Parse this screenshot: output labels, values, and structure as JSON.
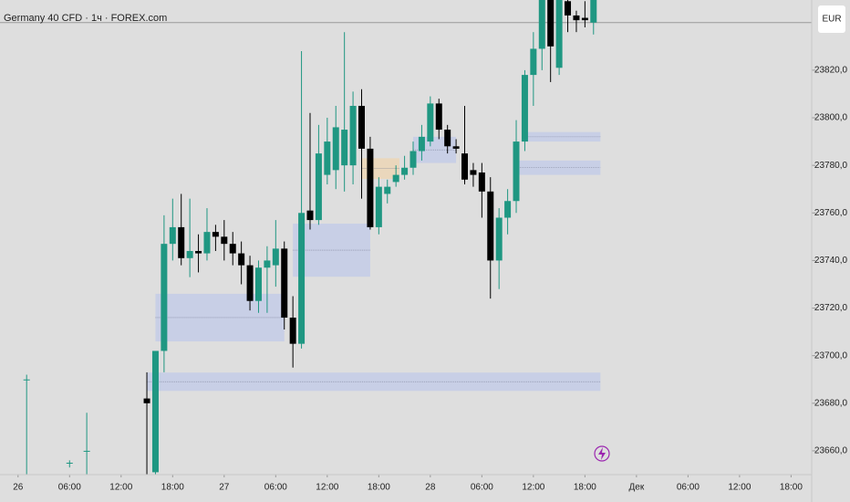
{
  "chart_data": {
    "type": "candlestick",
    "title": "Germany 40 CFD · 1ч · FOREX.com",
    "currency": "EUR",
    "up_color": "#1f9782",
    "down_color": "#000000",
    "background": "#dedede",
    "price_line": 23840,
    "x": [
      1,
      6,
      8,
      15,
      16,
      17,
      18,
      19,
      20,
      21,
      22,
      23,
      24,
      25,
      26,
      27,
      28,
      29,
      30,
      31,
      32,
      33,
      34,
      35,
      36,
      37,
      38,
      39,
      40,
      41,
      42,
      43,
      44,
      45,
      46,
      47,
      48,
      49,
      50,
      51,
      52,
      53,
      54,
      55,
      56,
      57,
      58,
      59,
      60,
      61,
      62,
      63,
      64,
      65,
      66,
      67
    ],
    "open": [
      23690,
      23655,
      23660,
      23682,
      23651,
      23702,
      23747,
      23754,
      23741,
      23744,
      23743,
      23752,
      23750,
      23747,
      23743,
      23738,
      23723,
      23737,
      23738,
      23745,
      23716,
      23705,
      23761,
      23757,
      23776,
      23778,
      23780,
      23780,
      23805,
      23787,
      23754,
      23768,
      23773,
      23776,
      23779,
      23786,
      23790,
      23806,
      23795,
      23788,
      23785,
      23778,
      23777,
      23769,
      23740,
      23758,
      23765,
      23790,
      23818,
      23829,
      23850,
      23821,
      23849,
      23843,
      23842,
      23840
    ],
    "high": [
      23692,
      23656,
      23676,
      23693,
      23702,
      23759,
      23766,
      23768,
      23766,
      23751,
      23762,
      23755,
      23757,
      23752,
      23748,
      23742,
      23740,
      23746,
      23757,
      23748,
      23725,
      23828,
      23802,
      23797,
      23800,
      23805,
      23836,
      23811,
      23812,
      23792,
      23775,
      23774,
      23780,
      23784,
      23790,
      23797,
      23809,
      23808,
      23797,
      23791,
      23805,
      23781,
      23781,
      23775,
      23762,
      23770,
      23799,
      23820,
      23836,
      23850,
      23850,
      23850,
      23850,
      23845,
      23849,
      23850
    ],
    "low": [
      23650,
      23653,
      23650,
      23650,
      23650,
      23693,
      23740,
      23738,
      23733,
      23735,
      23740,
      23744,
      23740,
      23738,
      23730,
      23719,
      23718,
      23718,
      23729,
      23711,
      23695,
      23703,
      23753,
      23755,
      23772,
      23770,
      23769,
      23772,
      23766,
      23753,
      23751,
      23764,
      23771,
      23774,
      23776,
      23782,
      23788,
      23791,
      23785,
      23785,
      23772,
      23771,
      23758,
      23724,
      23728,
      23751,
      23760,
      23786,
      23805,
      23820,
      23815,
      23818,
      23836,
      23836,
      23838,
      23835
    ],
    "close": [
      23690,
      23655,
      23660,
      23680,
      23702,
      23747,
      23754,
      23741,
      23744,
      23743,
      23752,
      23750,
      23747,
      23743,
      23738,
      23723,
      23737,
      23740,
      23745,
      23716,
      23705,
      23760,
      23757,
      23785,
      23790,
      23796,
      23795,
      23805,
      23787,
      23754,
      23771,
      23771,
      23776,
      23779,
      23786,
      23792,
      23806,
      23795,
      23788,
      23787,
      23774,
      23776,
      23769,
      23740,
      23758,
      23765,
      23790,
      23818,
      23829,
      23850,
      23830,
      23850,
      23843,
      23841,
      23841,
      23850
    ],
    "zones": [
      {
        "x": [
          15,
          67.8
        ],
        "y": [
          23685.2,
          23692.9
        ],
        "color": "#c4cce8"
      },
      {
        "x": [
          16,
          31
        ],
        "y": [
          23706,
          23726
        ],
        "color": "#c4cce8"
      },
      {
        "x": [
          32,
          41
        ],
        "y": [
          23733.2,
          23755.5
        ],
        "color": "#c4cce8"
      },
      {
        "x": [
          40,
          44.4
        ],
        "y": [
          23774.3,
          23783
        ],
        "color": "#ecd6b6"
      },
      {
        "x": [
          46,
          51
        ],
        "y": [
          23781,
          23792
        ],
        "color": "#c4cce8"
      },
      {
        "x": [
          59,
          67.8
        ],
        "y": [
          23790,
          23794
        ],
        "color": "#c4cce8"
      },
      {
        "x": [
          58,
          67.8
        ],
        "y": [
          23776,
          23782
        ],
        "color": "#c4cce8"
      }
    ],
    "xlim": [
      -2.1,
      92.4
    ],
    "xticks": [
      {
        "value": 0,
        "label": "26"
      },
      {
        "value": 6,
        "label": "06:00"
      },
      {
        "value": 12,
        "label": "12:00"
      },
      {
        "value": 18,
        "label": "18:00"
      },
      {
        "value": 24,
        "label": "27"
      },
      {
        "value": 30,
        "label": "06:00"
      },
      {
        "value": 36,
        "label": "12:00"
      },
      {
        "value": 42,
        "label": "18:00"
      },
      {
        "value": 48,
        "label": "28"
      },
      {
        "value": 54,
        "label": "06:00"
      },
      {
        "value": 60,
        "label": "12:00"
      },
      {
        "value": 66,
        "label": "18:00"
      },
      {
        "value": 72,
        "label": "Дек"
      },
      {
        "value": 78,
        "label": "06:00"
      },
      {
        "value": 84,
        "label": "12:00"
      },
      {
        "value": 90,
        "label": "18:00"
      }
    ],
    "ylim": [
      23650,
      23849.5
    ],
    "yticks": [
      {
        "value": 23660,
        "label": "23660,0"
      },
      {
        "value": 23680,
        "label": "23680,0"
      },
      {
        "value": 23700,
        "label": "23700,0"
      },
      {
        "value": 23720,
        "label": "23720,0"
      },
      {
        "value": 23740,
        "label": "23740,0"
      },
      {
        "value": 23760,
        "label": "23760,0"
      },
      {
        "value": 23780,
        "label": "23780,0"
      },
      {
        "value": 23800,
        "label": "23800,0"
      },
      {
        "value": 23820,
        "label": "23820,0"
      }
    ]
  }
}
